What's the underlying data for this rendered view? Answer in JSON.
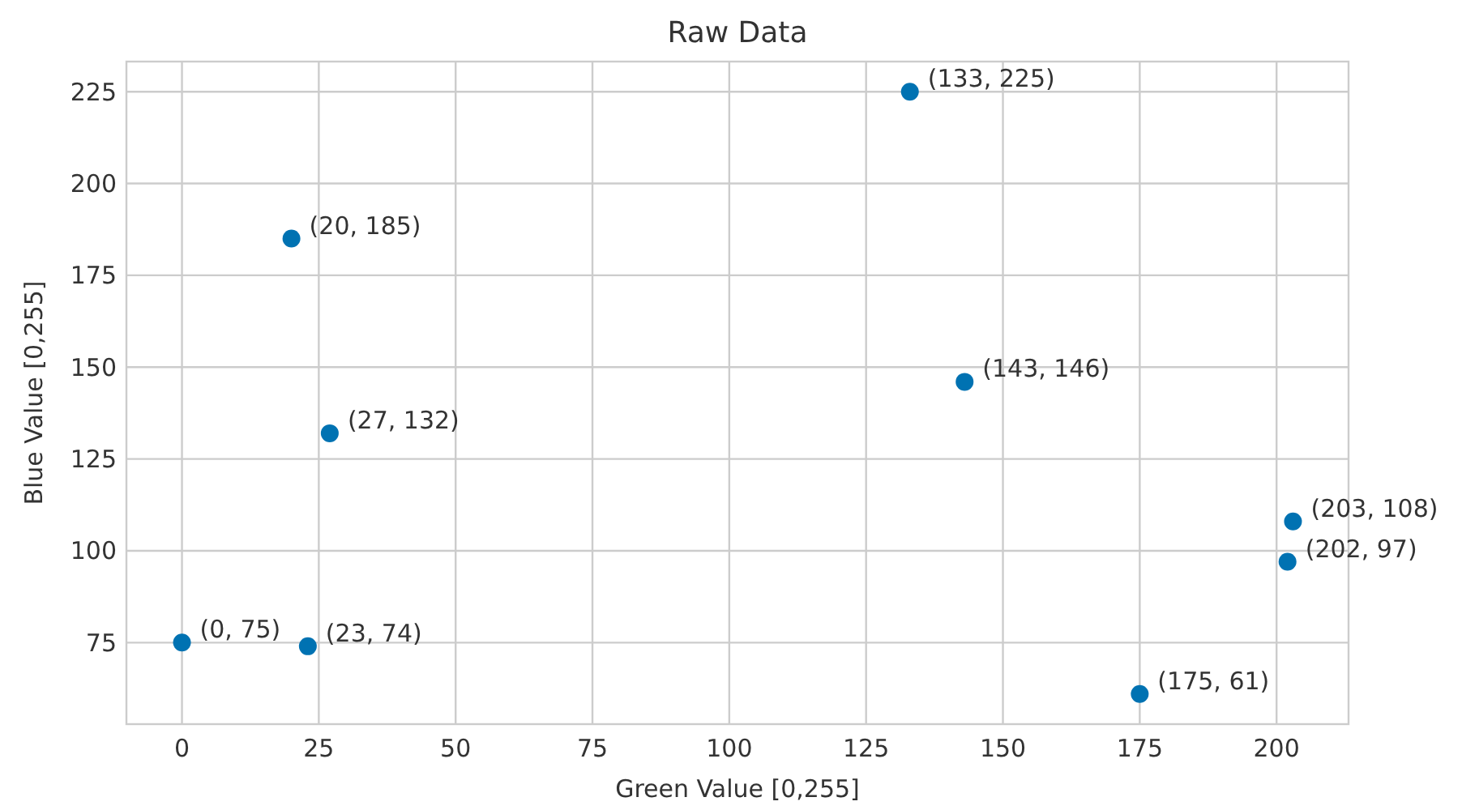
{
  "chart_data": {
    "type": "scatter",
    "title": "Raw Data",
    "xlabel": "Green Value [0,255]",
    "ylabel": "Blue Value [0,255]",
    "x": [
      133,
      20,
      27,
      143,
      203,
      202,
      0,
      23,
      175
    ],
    "values": [
      225,
      185,
      132,
      146,
      108,
      97,
      75,
      74,
      61
    ],
    "value_labels": [
      "(133, 225)",
      "(20, 185)",
      "(27, 132)",
      "(143, 146)",
      "(203, 108)",
      "(202, 97)",
      "(0, 75)",
      "(23, 74)",
      "(175, 61)"
    ],
    "color": "#0072b2",
    "marker": "circle",
    "grid": true,
    "xlim": [
      -10.15,
      213.15
    ],
    "xticks": [
      0,
      25,
      50,
      75,
      100,
      125,
      150,
      175,
      200
    ],
    "ylim": [
      52.8,
      233.2
    ],
    "yticks": [
      75,
      100,
      125,
      150,
      175,
      200,
      225
    ]
  }
}
